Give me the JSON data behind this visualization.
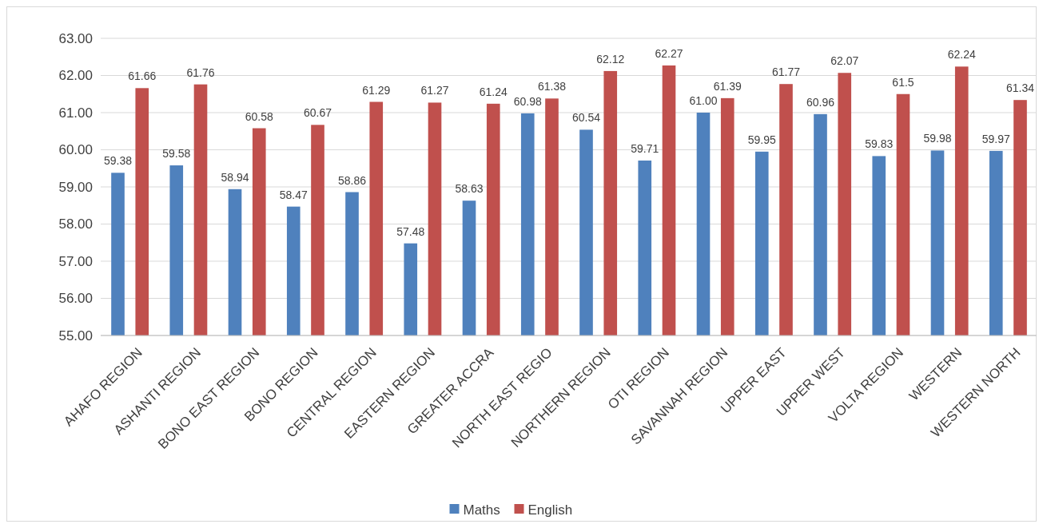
{
  "chart_data": {
    "type": "bar",
    "categories": [
      "AHAFO REGION",
      "ASHANTI REGION",
      "BONO EAST REGION",
      "BONO REGION",
      "CENTRAL REGION",
      "EASTERN REGION",
      "GREATER ACCRA",
      "NORTH EAST REGIO",
      "NORTHERN REGION",
      "OTI REGION",
      "SAVANNAH REGION",
      "UPPER EAST",
      "UPPER WEST",
      "VOLTA REGION",
      "WESTERN",
      "WESTERN NORTH"
    ],
    "series": [
      {
        "name": "Maths",
        "color": "#4f81bd",
        "values": [
          59.38,
          59.58,
          58.94,
          58.47,
          58.86,
          57.48,
          58.63,
          60.98,
          60.54,
          59.71,
          61.0,
          59.95,
          60.96,
          59.83,
          59.98,
          59.97
        ],
        "value_labels": [
          "59.38",
          "59.58",
          "58.94",
          "58.47",
          "58.86",
          "57.48",
          "58.63",
          "60.98",
          "60.54",
          "59.71",
          "61.00",
          "59.95",
          "60.96",
          "59.83",
          "59.98",
          "59.97"
        ]
      },
      {
        "name": "English",
        "color": "#c0504d",
        "values": [
          61.66,
          61.76,
          60.58,
          60.67,
          61.29,
          61.27,
          61.24,
          61.38,
          62.12,
          62.27,
          61.39,
          61.77,
          62.07,
          61.5,
          62.24,
          61.34
        ],
        "value_labels": [
          "61.66",
          "61.76",
          "60.58",
          "60.67",
          "61.29",
          "61.27",
          "61.24",
          "61.38",
          "62.12",
          "62.27",
          "61.39",
          "61.77",
          "62.07",
          "61.5",
          "62.24",
          "61.34"
        ]
      }
    ],
    "ylim": [
      55,
      63
    ],
    "yticks": [
      {
        "value": 55,
        "label": "55.00"
      },
      {
        "value": 56,
        "label": "56.00"
      },
      {
        "value": 57,
        "label": "57.00"
      },
      {
        "value": 58,
        "label": "58.00"
      },
      {
        "value": 59,
        "label": "59.00"
      },
      {
        "value": 60,
        "label": "60.00"
      },
      {
        "value": 61,
        "label": "61.00"
      },
      {
        "value": 62,
        "label": "62.00"
      },
      {
        "value": 63,
        "label": "63.00"
      }
    ],
    "grid": "y",
    "legend": "bottom"
  }
}
